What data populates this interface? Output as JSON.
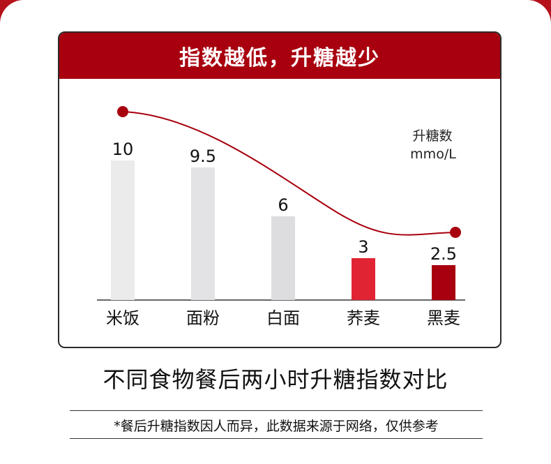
{
  "header": {
    "title": "指数越低，升糖越少"
  },
  "chart_data": {
    "type": "bar",
    "categories": [
      "米饭",
      "面粉",
      "白面",
      "荞麦",
      "黑麦"
    ],
    "values": [
      10,
      9.5,
      6,
      3,
      2.5
    ],
    "value_labels": [
      "10",
      "9.5",
      "6",
      "3",
      "2.5"
    ],
    "ylabel_line1": "升糖数",
    "ylabel_line2": "mmo/L",
    "ylim": [
      0,
      12
    ],
    "bar_colors": [
      "#ebebeb",
      "#e3e2e4",
      "#dddcdf",
      "#e02433",
      "#a8000e"
    ],
    "curve_color": "#a8000e",
    "grid": false
  },
  "subtitle": "不同食物餐后两小时升糖指数对比",
  "note": "*餐后升糖指数因人而异，此数据来源于网络，仅供参考"
}
